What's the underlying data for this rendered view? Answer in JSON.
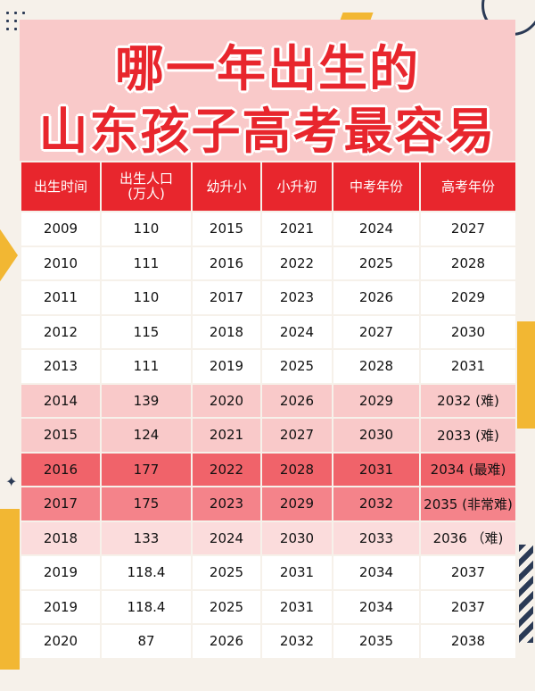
{
  "title": {
    "line1": "哪一年出生的",
    "line2": "山东孩子高考最容易"
  },
  "columns": {
    "birth_year": "出生时间",
    "population_l1": "出生人口",
    "population_l2": "(万人)",
    "kindergarten_to_primary": "幼升小",
    "primary_to_middle": "小升初",
    "zhongkao_year": "中考年份",
    "gaokao_year": "高考年份"
  },
  "rows": [
    {
      "birth": "2009",
      "pop": "110",
      "k2p": "2015",
      "p2m": "2021",
      "zk": "2024",
      "gk": "2027",
      "style": "plain"
    },
    {
      "birth": "2010",
      "pop": "111",
      "k2p": "2016",
      "p2m": "2022",
      "zk": "2025",
      "gk": "2028",
      "style": "plain"
    },
    {
      "birth": "2011",
      "pop": "110",
      "k2p": "2017",
      "p2m": "2023",
      "zk": "2026",
      "gk": "2029",
      "style": "plain"
    },
    {
      "birth": "2012",
      "pop": "115",
      "k2p": "2018",
      "p2m": "2024",
      "zk": "2027",
      "gk": "2030",
      "style": "plain"
    },
    {
      "birth": "2013",
      "pop": "111",
      "k2p": "2019",
      "p2m": "2025",
      "zk": "2028",
      "gk": "2031",
      "style": "plain"
    },
    {
      "birth": "2014",
      "pop": "139",
      "k2p": "2020",
      "p2m": "2026",
      "zk": "2029",
      "gk": "2032 (难)",
      "style": "light"
    },
    {
      "birth": "2015",
      "pop": "124",
      "k2p": "2021",
      "p2m": "2027",
      "zk": "2030",
      "gk": "2033 (难)",
      "style": "light"
    },
    {
      "birth": "2016",
      "pop": "177",
      "k2p": "2022",
      "p2m": "2028",
      "zk": "2031",
      "gk": "2034 (最难)",
      "style": "dark"
    },
    {
      "birth": "2017",
      "pop": "175",
      "k2p": "2023",
      "p2m": "2029",
      "zk": "2032",
      "gk": "2035 (非常难)",
      "style": "mid"
    },
    {
      "birth": "2018",
      "pop": "133",
      "k2p": "2024",
      "p2m": "2030",
      "zk": "2033",
      "gk": "2036 （难)",
      "style": "pale"
    },
    {
      "birth": "2019",
      "pop": "118.4",
      "k2p": "2025",
      "p2m": "2031",
      "zk": "2034",
      "gk": "2037",
      "style": "plain"
    },
    {
      "birth": "2019",
      "pop": "118.4",
      "k2p": "2025",
      "p2m": "2031",
      "zk": "2034",
      "gk": "2037",
      "style": "plain"
    },
    {
      "birth": "2020",
      "pop": "87",
      "k2p": "2026",
      "p2m": "2032",
      "zk": "2035",
      "gk": "2038",
      "style": "plain"
    }
  ],
  "colors": {
    "title_red": "#e8262d",
    "header_red": "#e8262d",
    "row_light": "#f9c9c9",
    "row_dark": "#f0636a",
    "row_mid": "#f4838a",
    "row_pale": "#fbdcdc",
    "accent_yellow": "#f2b733",
    "accent_navy": "#2b3a55"
  }
}
